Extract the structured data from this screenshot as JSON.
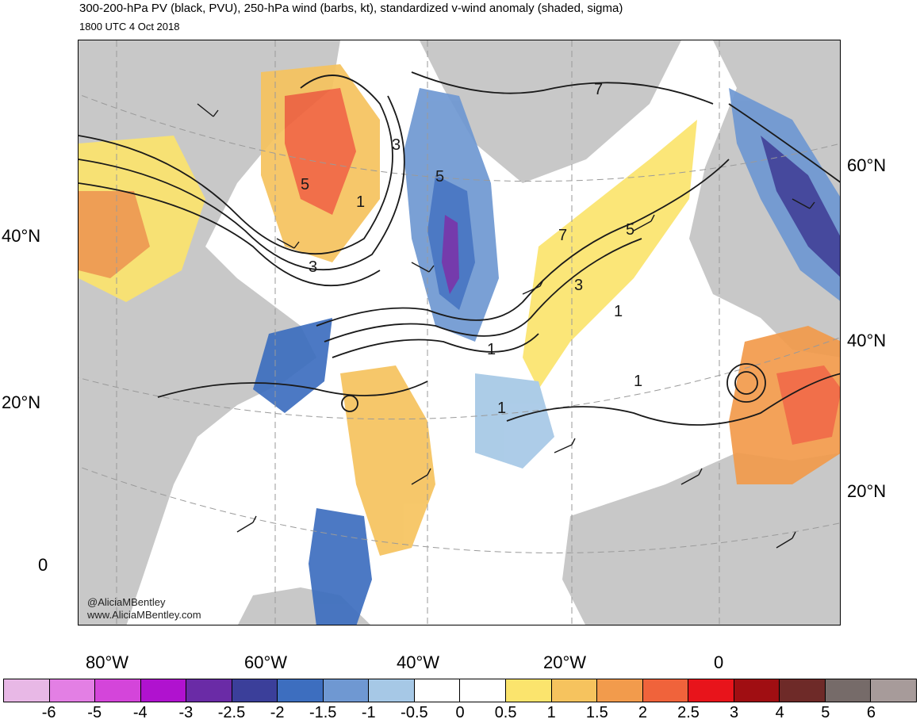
{
  "header": {
    "title": "300-200-hPa PV (black, PVU), 250-hPa wind (barbs, kt), standardized v-wind anomaly (shaded, sigma)",
    "valid_time": "1800 UTC 4 Oct 2018"
  },
  "map": {
    "projection": "Lambert conformal (North Atlantic sector)",
    "lat_labels_left": [
      "40°N",
      "20°N",
      "0"
    ],
    "lat_labels_right": [
      "60°N",
      "40°N",
      "20°N"
    ],
    "lon_labels_bottom": [
      "80°W",
      "60°W",
      "40°W",
      "20°W",
      "0"
    ],
    "pv_contour_labels": [
      "3",
      "5",
      "1",
      "3",
      "5",
      "7",
      "7",
      "5",
      "3",
      "1",
      "1",
      "1",
      "1"
    ],
    "credit_handle": "@AliciaMBentley",
    "credit_site": "www.AliciaMBentley.com",
    "colors": {
      "land": "#c8c8c8",
      "ocean": "#ffffff",
      "contour": "#1a1a1a"
    }
  },
  "colorbar": {
    "bins": [
      {
        "color": "#e8b8e6"
      },
      {
        "color": "#e37fe4"
      },
      {
        "color": "#d445da"
      },
      {
        "color": "#b012cf"
      },
      {
        "color": "#6a2ba6"
      },
      {
        "color": "#3b3f9a"
      },
      {
        "color": "#3d6ebf"
      },
      {
        "color": "#6f98d2"
      },
      {
        "color": "#a6c8e6"
      },
      {
        "color": "#ffffff"
      },
      {
        "color": "#ffffff"
      },
      {
        "color": "#fbe46d"
      },
      {
        "color": "#f6c35e"
      },
      {
        "color": "#f29b4c"
      },
      {
        "color": "#f0633b"
      },
      {
        "color": "#e8141b"
      },
      {
        "color": "#a00e12"
      },
      {
        "color": "#6e2a28"
      },
      {
        "color": "#766b69"
      },
      {
        "color": "#a79b9a"
      }
    ],
    "tick_labels": [
      "-6",
      "-5",
      "-4",
      "-3",
      "-2.5",
      "-2",
      "-1.5",
      "-1",
      "-0.5",
      "0",
      "0.5",
      "1",
      "1.5",
      "2",
      "2.5",
      "3",
      "4",
      "5",
      "6"
    ]
  }
}
